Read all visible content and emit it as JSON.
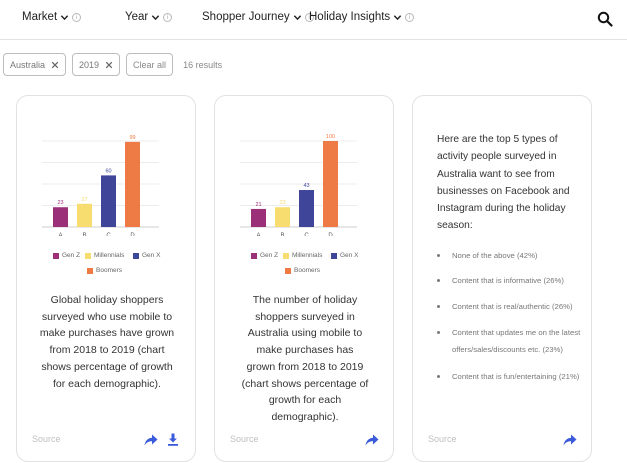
{
  "filters": [
    {
      "label": "Market"
    },
    {
      "label": "Year"
    },
    {
      "label": "Shopper Journey"
    },
    {
      "label": "Holiday Insights"
    }
  ],
  "icons": {
    "search": "search-icon",
    "share": "share-icon",
    "download": "download-icon",
    "chip_close": "close-icon",
    "filter_chevron": "chevron-down-icon",
    "filter_info": "info-icon"
  },
  "colors": {
    "accent": "#3b5bdb",
    "gen_z": "#9b2f78",
    "millennials": "#f7dc6f",
    "gen_x": "#3f4599",
    "boomers": "#ee7a45"
  },
  "chips": [
    {
      "label": "Australia"
    },
    {
      "label": "2019"
    }
  ],
  "clear_all": "Clear all",
  "results": "16 results",
  "cards": [
    {
      "caption": "Global holiday shoppers surveyed who use mobile to make purchases have grown from 2018 to 2019 (chart shows percentage of growth for each demographic).",
      "source": "Source"
    },
    {
      "caption": "The number of holiday shoppers surveyed in Australia using mobile to make purchases has grown from 2018 to 2019 (chart shows percentage of growth for each demographic).",
      "source": "Source"
    },
    {
      "intro": "Here are the top 5 types of activity people surveyed in Australia want to see from businesses on Facebook and Instagram during the holiday season:",
      "items": [
        "None of the above (42%)",
        "Content that is informative (26%)",
        "Content that is real/authentic (26%)",
        "Content that updates me on the latest offers/sales/discounts etc. (23%)",
        "Content that is fun/entertaining (21%)"
      ],
      "source": "Source"
    }
  ],
  "chart_data": [
    {
      "type": "bar",
      "categories": [
        "A",
        "B",
        "C",
        "D"
      ],
      "series": [
        {
          "values": [
            23,
            27,
            60,
            99
          ]
        }
      ],
      "legend": [
        "Gen Z",
        "Millennials",
        "Gen X",
        "Boomers"
      ],
      "data_labels": [
        "23",
        "27",
        "60",
        "99"
      ],
      "grid": true,
      "ylim": [
        0,
        100
      ],
      "legend_position": "bottom"
    },
    {
      "type": "bar",
      "categories": [
        "A",
        "B",
        "C",
        "D"
      ],
      "series": [
        {
          "values": [
            21,
            23,
            43,
            100
          ]
        }
      ],
      "legend": [
        "Gen Z",
        "Millennials",
        "Gen X",
        "Boomers"
      ],
      "data_labels": [
        "21",
        "23",
        "43",
        "100"
      ],
      "grid": true,
      "ylim": [
        0,
        100
      ],
      "legend_position": "bottom"
    }
  ]
}
